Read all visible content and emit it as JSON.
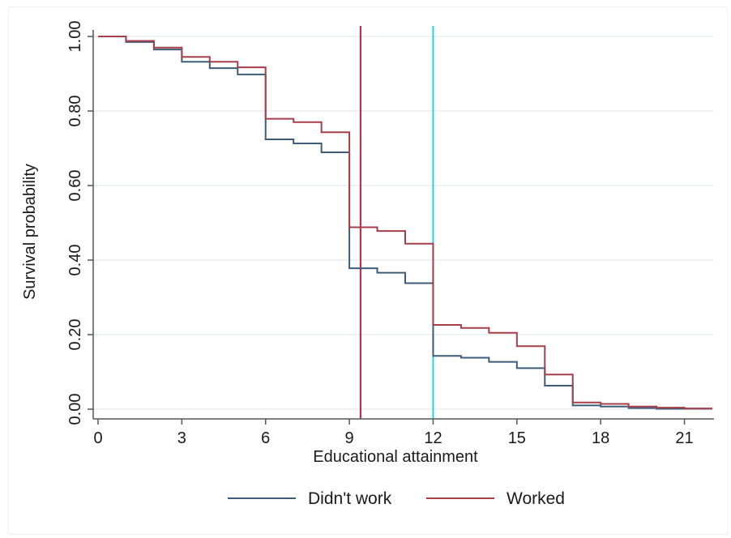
{
  "chart_data": {
    "type": "line",
    "step": true,
    "title": "",
    "xlabel": "Educational attainment",
    "ylabel": "Survival probability",
    "xlim": [
      0,
      22
    ],
    "ylim": [
      0,
      1
    ],
    "xticks": [
      0,
      3,
      6,
      9,
      12,
      15,
      18,
      21
    ],
    "yticks": [
      0,
      0.2,
      0.4,
      0.6,
      0.8,
      1.0
    ],
    "xtick_labels": [
      "0",
      "3",
      "6",
      "9",
      "12",
      "15",
      "18",
      "21"
    ],
    "ytick_labels": [
      "0.00",
      "0.20",
      "0.40",
      "0.60",
      "0.80",
      "1.00"
    ],
    "grid": true,
    "legend_position": "bottom",
    "series": [
      {
        "name": "Didn't work",
        "color": "#3e5c78",
        "x": [
          0,
          1,
          2,
          3,
          4,
          5,
          6,
          7,
          8,
          9,
          10,
          11,
          12,
          13,
          14,
          15,
          16,
          17,
          18,
          19,
          20,
          21,
          22
        ],
        "y": [
          1.0,
          0.985,
          0.965,
          0.932,
          0.915,
          0.898,
          0.724,
          0.713,
          0.689,
          0.378,
          0.366,
          0.338,
          0.143,
          0.138,
          0.127,
          0.11,
          0.063,
          0.01,
          0.007,
          0.003,
          0.001,
          0.001,
          0.001
        ]
      },
      {
        "name": "Worked",
        "color": "#a63f4a",
        "x": [
          0,
          1,
          2,
          3,
          4,
          5,
          6,
          7,
          8,
          9,
          10,
          11,
          12,
          13,
          14,
          15,
          16,
          17,
          18,
          19,
          20,
          21,
          22
        ],
        "y": [
          1.0,
          0.988,
          0.97,
          0.945,
          0.932,
          0.917,
          0.779,
          0.77,
          0.743,
          0.488,
          0.478,
          0.444,
          0.226,
          0.218,
          0.205,
          0.169,
          0.093,
          0.018,
          0.014,
          0.007,
          0.004,
          0.002,
          0.002
        ]
      }
    ],
    "vertical_lines": [
      {
        "x": 9.4,
        "color": "#c2203a"
      },
      {
        "x": 12.0,
        "color": "#25d4e6"
      }
    ],
    "colors": {
      "grid": "#e9edf2",
      "axis": "#555555"
    }
  }
}
